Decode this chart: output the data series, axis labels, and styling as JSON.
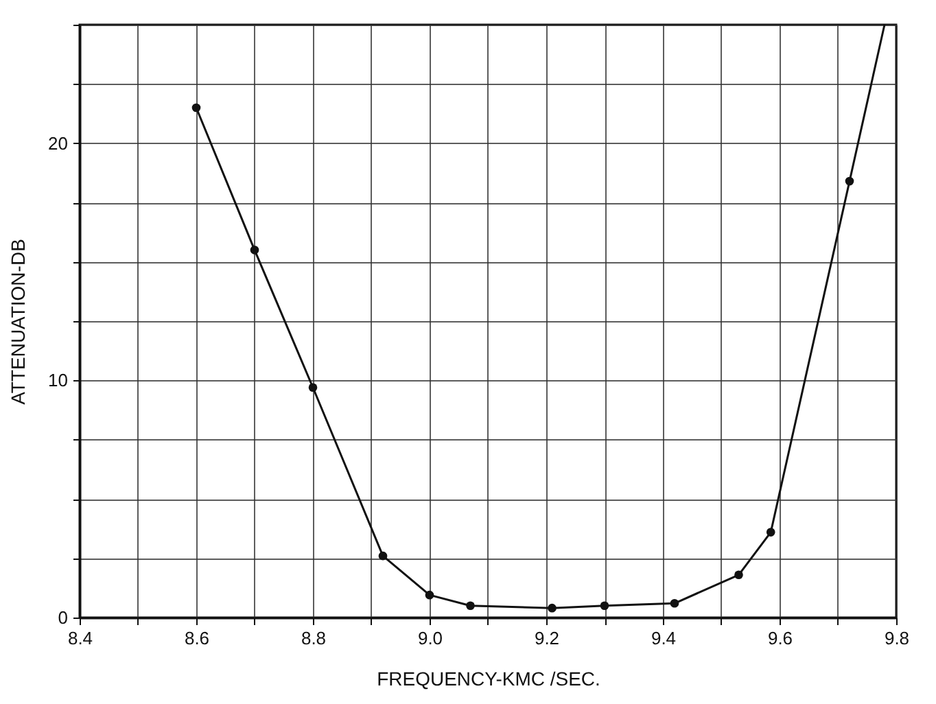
{
  "chart_data": {
    "type": "line",
    "xlabel": "FREQUENCY-KMC /SEC.",
    "ylabel": "ATTENUATION-DB",
    "xlim": [
      8.4,
      9.8
    ],
    "ylim": [
      0,
      25
    ],
    "xticks": [
      8.4,
      {
        "value": 8.5,
        "label": null
      },
      8.6,
      {
        "value": 8.7,
        "label": null
      },
      8.8,
      {
        "value": 8.9,
        "label": null
      },
      {
        "value": 9,
        "label": "9.0"
      },
      {
        "value": 9.1,
        "label": null
      },
      9.2,
      {
        "value": 9.3,
        "label": null
      },
      9.4,
      {
        "value": 9.5,
        "label": null
      },
      9.6,
      {
        "value": 9.7,
        "label": null
      },
      9.8
    ],
    "yticks": [
      0,
      {
        "value": 2.5,
        "label": null
      },
      {
        "value": 5,
        "label": null
      },
      {
        "value": 7.5,
        "label": null
      },
      10,
      {
        "value": 12.5,
        "label": null
      },
      {
        "value": 15,
        "label": null
      },
      {
        "value": 17.5,
        "label": null
      },
      20,
      {
        "value": 22.5,
        "label": null
      },
      {
        "value": 25,
        "label": null
      }
    ],
    "grid": true,
    "line_style": "solid",
    "series": [
      {
        "color": "#111111",
        "marker": "none",
        "x": [
          8.6,
          8.7,
          8.8,
          8.92,
          9.0,
          9.07,
          9.21,
          9.3,
          9.42,
          9.53,
          9.585,
          9.72,
          9.78
        ],
        "values": [
          21.5,
          15.5,
          9.7,
          2.6,
          0.95,
          0.5,
          0.4,
          0.5,
          0.6,
          1.8,
          3.6,
          18.4,
          25
        ]
      },
      {
        "type": "scatter",
        "color": "#111111",
        "marker": "circle",
        "x": [
          8.6,
          8.7,
          8.8,
          8.92,
          9.0,
          9.07,
          9.21,
          9.3,
          9.42,
          9.53,
          9.585,
          9.72
        ],
        "values": [
          21.5,
          15.5,
          9.7,
          2.6,
          0.95,
          0.5,
          0.4,
          0.5,
          0.6,
          1.8,
          3.6,
          18.4
        ]
      }
    ]
  }
}
